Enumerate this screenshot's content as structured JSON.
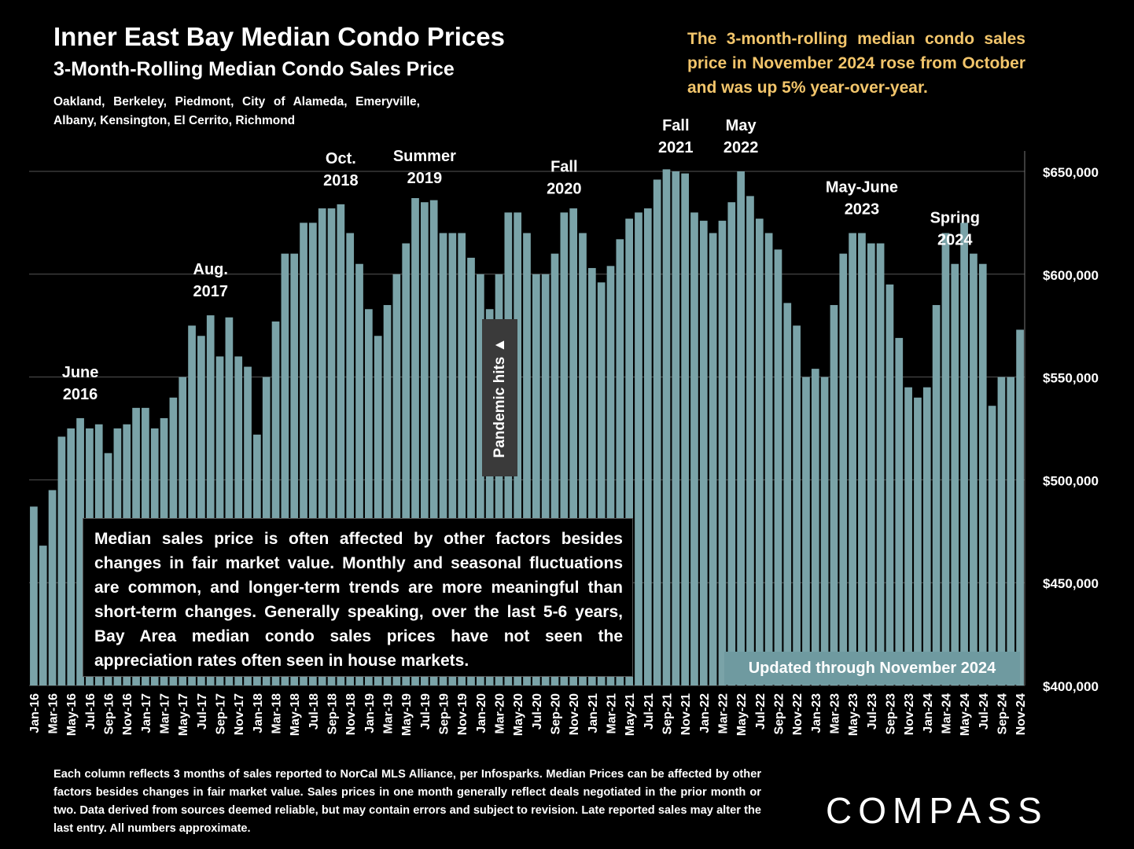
{
  "title": "Inner East Bay Median Condo Prices",
  "subtitle": "3-Month-Rolling Median Condo Sales Price",
  "cities": "Oakland, Berkeley, Piedmont, City of Alameda, Emeryville, Albany, Kensington, El Cerrito, Richmond",
  "callout": "The 3-month-rolling median condo sales price in November 2024 rose from October and was up 5% year-over-year.",
  "note_box": "Median sales price is often affected by other factors besides changes in fair market value. Monthly and seasonal fluctuations are common, and longer-term trends are more meaningful than short-term changes. Generally speaking, over the last 5-6 years, Bay Area median condo sales prices have not seen the appreciation rates often seen in house markets.",
  "updated_label": "Updated through November 2024",
  "pandemic_label": "Pandemic hits ▲",
  "footer": "Each column reflects 3 months of sales reported to NorCal MLS Alliance, per Infosparks. Median Prices can be affected by other factors besides changes in fair market value. Sales prices in one month generally reflect deals negotiated in the prior month or two. Data derived from sources deemed reliable, but may contain errors and subject to revision. Late reported sales may alter the last entry. All numbers approximate.",
  "logo": "COMPASS",
  "colors": {
    "bar": "#7aa3a8",
    "callout": "#f2c56b",
    "badge": "#6f9aa0"
  },
  "chart_data": {
    "type": "bar",
    "ylim": [
      400000,
      650000
    ],
    "yticks": [
      {
        "value": 400000,
        "label": "$400,000"
      },
      {
        "value": 450000,
        "label": "$450,000"
      },
      {
        "value": 500000,
        "label": "$500,000"
      },
      {
        "value": 550000,
        "label": "$550,000"
      },
      {
        "value": 600000,
        "label": "$600,000"
      },
      {
        "value": 650000,
        "label": "$650,000"
      }
    ],
    "grid": true,
    "axis_position": "right",
    "xtick_labels": [
      "Jan-16",
      "Mar-16",
      "May-16",
      "Jul-16",
      "Sep-16",
      "Nov-16",
      "Jan-17",
      "Mar-17",
      "May-17",
      "Jul-17",
      "Sep-17",
      "Nov-17",
      "Jan-18",
      "Mar-18",
      "May-18",
      "Jul-18",
      "Sep-18",
      "Nov-18",
      "Jan-19",
      "Mar-19",
      "May-19",
      "Jul-19",
      "Sep-19",
      "Nov-19",
      "Jan-20",
      "Mar-20",
      "May-20",
      "Jul-20",
      "Sep-20",
      "Nov-20",
      "Jan-21",
      "Mar-21",
      "May-21",
      "Jul-21",
      "Sep-21",
      "Nov-21",
      "Jan-22",
      "Mar-22",
      "May-22",
      "Jul-22",
      "Sep-22",
      "Nov-22",
      "Jan-23",
      "Mar-23",
      "May-23",
      "Jul-23",
      "Sep-23",
      "Nov-23",
      "Jan-24",
      "Mar-24",
      "May-24",
      "Jul-24",
      "Sep-24",
      "Nov-24"
    ],
    "months": [
      "Jan-16",
      "Feb-16",
      "Mar-16",
      "Apr-16",
      "May-16",
      "Jun-16",
      "Jul-16",
      "Aug-16",
      "Sep-16",
      "Oct-16",
      "Nov-16",
      "Dec-16",
      "Jan-17",
      "Feb-17",
      "Mar-17",
      "Apr-17",
      "May-17",
      "Jun-17",
      "Jul-17",
      "Aug-17",
      "Sep-17",
      "Oct-17",
      "Nov-17",
      "Dec-17",
      "Jan-18",
      "Feb-18",
      "Mar-18",
      "Apr-18",
      "May-18",
      "Jun-18",
      "Jul-18",
      "Aug-18",
      "Sep-18",
      "Oct-18",
      "Nov-18",
      "Dec-18",
      "Jan-19",
      "Feb-19",
      "Mar-19",
      "Apr-19",
      "May-19",
      "Jun-19",
      "Jul-19",
      "Aug-19",
      "Sep-19",
      "Oct-19",
      "Nov-19",
      "Dec-19",
      "Jan-20",
      "Feb-20",
      "Mar-20",
      "Apr-20",
      "May-20",
      "Jun-20",
      "Jul-20",
      "Aug-20",
      "Sep-20",
      "Oct-20",
      "Nov-20",
      "Dec-20",
      "Jan-21",
      "Feb-21",
      "Mar-21",
      "Apr-21",
      "May-21",
      "Jun-21",
      "Jul-21",
      "Aug-21",
      "Sep-21",
      "Oct-21",
      "Nov-21",
      "Dec-21",
      "Jan-22",
      "Feb-22",
      "Mar-22",
      "Apr-22",
      "May-22",
      "Jun-22",
      "Jul-22",
      "Aug-22",
      "Sep-22",
      "Oct-22",
      "Nov-22",
      "Dec-22",
      "Jan-23",
      "Feb-23",
      "Mar-23",
      "Apr-23",
      "May-23",
      "Jun-23",
      "Jul-23",
      "Aug-23",
      "Sep-23",
      "Oct-23",
      "Nov-23",
      "Dec-23",
      "Jan-24",
      "Feb-24",
      "Mar-24",
      "Apr-24",
      "May-24",
      "Jun-24",
      "Jul-24",
      "Aug-24",
      "Sep-24",
      "Oct-24",
      "Nov-24"
    ],
    "values": [
      487000,
      468000,
      495000,
      521000,
      525000,
      530000,
      525000,
      527000,
      513000,
      525000,
      527000,
      535000,
      535000,
      525000,
      530000,
      540000,
      550000,
      575000,
      570000,
      580000,
      560000,
      579000,
      560000,
      555000,
      522000,
      550000,
      577000,
      610000,
      610000,
      625000,
      625000,
      632000,
      632000,
      634000,
      620000,
      605000,
      583000,
      570000,
      585000,
      600000,
      615000,
      637000,
      635000,
      636000,
      620000,
      620000,
      620000,
      608000,
      600000,
      583000,
      600000,
      630000,
      630000,
      620000,
      600000,
      600000,
      610000,
      630000,
      632000,
      620000,
      603000,
      596000,
      604000,
      617000,
      627000,
      630000,
      632000,
      646000,
      651000,
      650000,
      649000,
      630000,
      626000,
      620000,
      626000,
      635000,
      650000,
      638000,
      627000,
      620000,
      612000,
      586000,
      575000,
      550000,
      554000,
      550000,
      585000,
      610000,
      620000,
      620000,
      615000,
      615000,
      595000,
      569000,
      545000,
      540000,
      545000,
      585000,
      620000,
      605000,
      625000,
      610000,
      605000,
      536000,
      550000,
      550000,
      573000
    ],
    "annotations": [
      {
        "month": "Jun-16",
        "label": "June 2016"
      },
      {
        "month": "Aug-17",
        "label": "Aug. 2017"
      },
      {
        "month": "Oct-18",
        "label": "Oct. 2018"
      },
      {
        "month": "Jul-19",
        "label": "Summer 2019"
      },
      {
        "month": "Oct-20",
        "label": "Fall 2020"
      },
      {
        "month": "Oct-21",
        "label": "Fall 2021"
      },
      {
        "month": "May-22",
        "label": "May 2022"
      },
      {
        "month": "Jun-23",
        "label": "May-June 2023"
      },
      {
        "month": "Apr-24",
        "label": "Spring 2024"
      }
    ]
  }
}
